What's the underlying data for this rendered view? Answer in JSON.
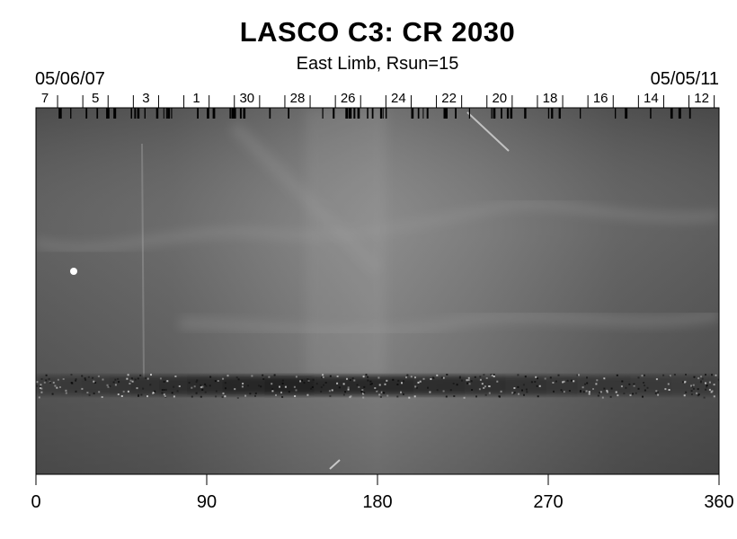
{
  "title": "LASCO C3: CR 2030",
  "subtitle": "East Limb, Rsun=15",
  "date_left": "05/06/07",
  "date_right": "05/05/11",
  "day_labels": [
    "7",
    "5",
    "3",
    "1",
    "30",
    "28",
    "26",
    "24",
    "22",
    "20",
    "18",
    "16",
    "14",
    "12"
  ],
  "x_ticks": [
    0,
    90,
    180,
    270,
    360
  ],
  "x_tick_labels": [
    "0",
    "90",
    "180",
    "270",
    "360"
  ],
  "colors": {
    "background": "#ffffff",
    "plot_gray": "#6b6b6b",
    "band_dark": "#1f1f1f"
  }
}
